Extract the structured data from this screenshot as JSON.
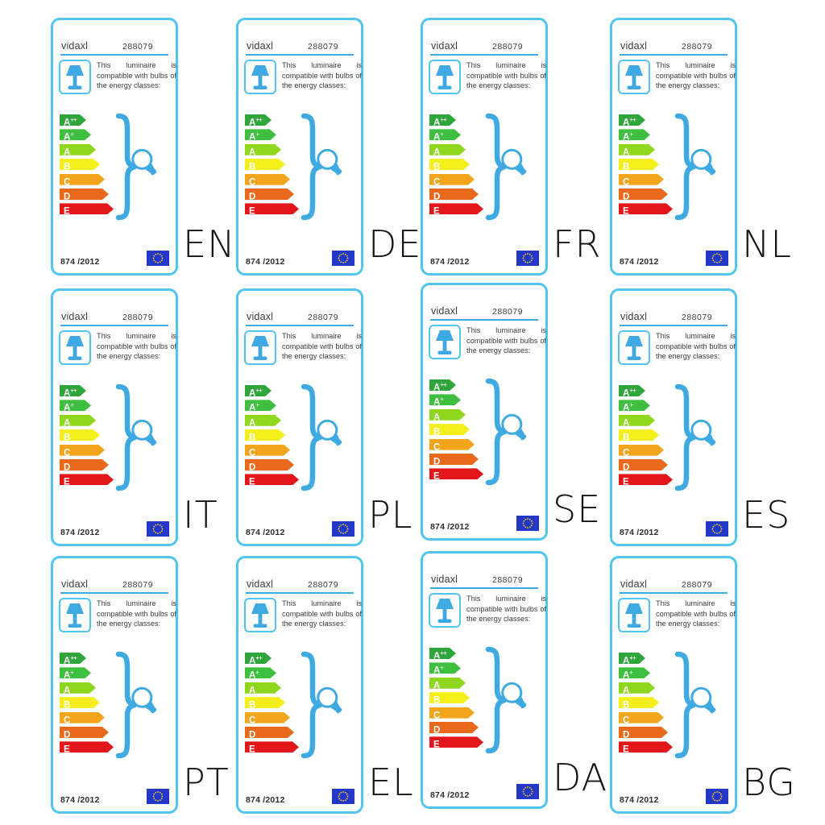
{
  "card": {
    "brand": "vidaxl",
    "model": "288079",
    "description": "This luminaire is compatible with bulbs of the energy classes:",
    "regulation": "874 /2012",
    "energy_classes": [
      {
        "letter": "A",
        "sup": "++",
        "color": "#2fa63c"
      },
      {
        "letter": "A",
        "sup": "+",
        "color": "#3fbf3f"
      },
      {
        "letter": "A",
        "sup": "",
        "color": "#8fd61e"
      },
      {
        "letter": "B",
        "sup": "",
        "color": "#f4ee1c"
      },
      {
        "letter": "C",
        "sup": "",
        "color": "#f2a41b"
      },
      {
        "letter": "D",
        "sup": "",
        "color": "#e8691b"
      },
      {
        "letter": "E",
        "sup": "",
        "color": "#e3161b"
      }
    ],
    "colors": {
      "accent_blue": "#3fa9e1",
      "border_blue": "#52c5ef",
      "flag_blue": "#2438c8",
      "star_yellow": "#ffd617"
    }
  },
  "languages": [
    "EN",
    "DE",
    "FR",
    "NL",
    "IT",
    "PL",
    "SE",
    "ES",
    "PT",
    "EL",
    "DA",
    "BG"
  ]
}
